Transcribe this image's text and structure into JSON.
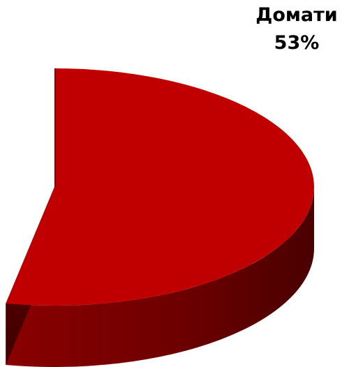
{
  "chart_data": {
    "type": "pie",
    "style": "3d",
    "title": "",
    "slices": [
      {
        "name": "Домати",
        "value": 53,
        "value_label": "53%",
        "color": "#c00000"
      }
    ],
    "total": 100,
    "legend": "none"
  },
  "colors": {
    "slice_top": "#c00000",
    "slice_side_dark": "#5a0000",
    "slice_side_light": "#8a0000"
  }
}
